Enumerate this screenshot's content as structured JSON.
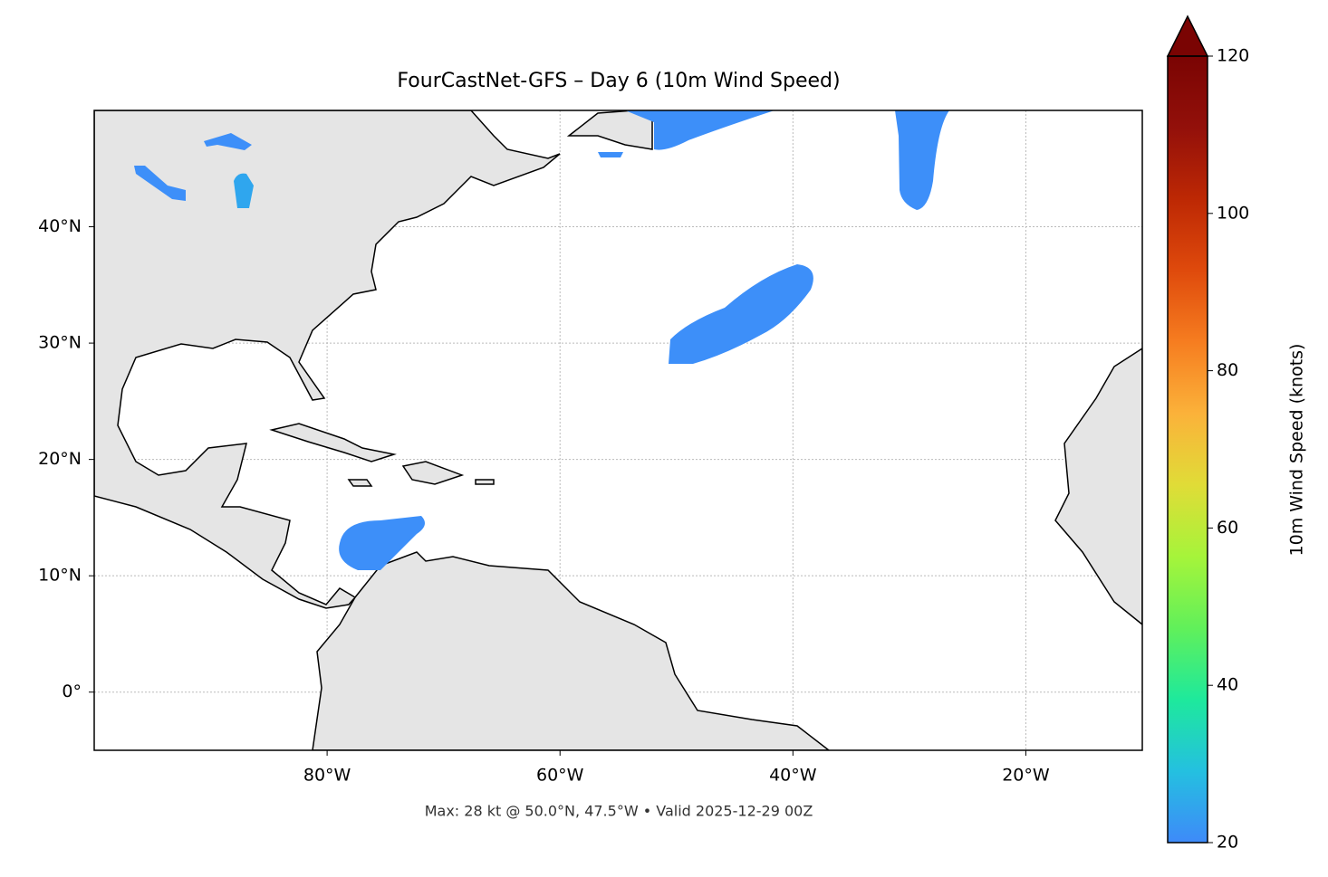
{
  "title": "FourCastNet-GFS – Day 6 (10m Wind Speed)",
  "footer": "Max: 28 kt @ 50.0°N, 47.5°W • Valid 2025-12-29 00Z",
  "map": {
    "xlim": [
      -100,
      -10
    ],
    "ylim": [
      -5,
      50
    ],
    "xticks": [
      {
        "value": -80,
        "label": "80°W"
      },
      {
        "value": -60,
        "label": "60°W"
      },
      {
        "value": -40,
        "label": "40°W"
      },
      {
        "value": -20,
        "label": "20°W"
      }
    ],
    "yticks": [
      {
        "value": 0,
        "label": "0°"
      },
      {
        "value": 10,
        "label": "10°N"
      },
      {
        "value": 20,
        "label": "20°N"
      },
      {
        "value": 30,
        "label": "30°N"
      },
      {
        "value": 40,
        "label": "40°N"
      }
    ],
    "grid": true
  },
  "colorbar": {
    "label": "10m Wind Speed (knots)",
    "lim": [
      20,
      120
    ],
    "ticks": [
      20,
      40,
      60,
      80,
      100,
      120
    ],
    "colors": [
      "#3e8af9",
      "#24c0e0",
      "#1ee99c",
      "#61f05a",
      "#a6f43a",
      "#e0dc37",
      "#fbb23a",
      "#f67d20",
      "#df4a0c",
      "#bd2804",
      "#93100a",
      "#7a0403"
    ],
    "extend": "max"
  }
}
